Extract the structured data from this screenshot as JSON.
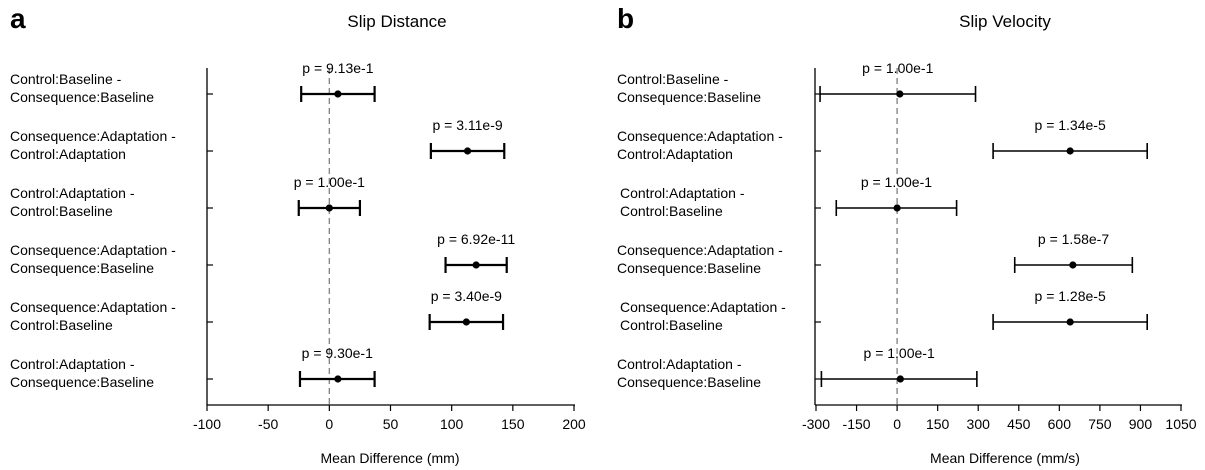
{
  "chart_data": [
    {
      "type": "errorbar",
      "panel": "a",
      "title": "Slip Distance",
      "xlabel": "Mean Difference (mm)",
      "xlim": [
        -100,
        200
      ],
      "xticks": [
        -100,
        -50,
        0,
        50,
        100,
        150,
        200
      ],
      "tick_labels": [
        "-100",
        "-50",
        "0",
        "50",
        "100",
        "150",
        "200"
      ],
      "reference_line": 0,
      "categories": [
        [
          "Control:Baseline -",
          "Consequence:Baseline"
        ],
        [
          "Consequence:Adaptation -",
          "Control:Adaptation"
        ],
        [
          "Control:Adaptation -",
          "Control:Baseline"
        ],
        [
          "Consequence:Adaptation -",
          "Consequence:Baseline"
        ],
        [
          "Consequence:Adaptation -",
          "Control:Baseline"
        ],
        [
          "Control:Adaptation -",
          "Consequence:Baseline"
        ]
      ],
      "mean": [
        7,
        113,
        0,
        120,
        112,
        7
      ],
      "lower": [
        -23,
        83,
        -25,
        95,
        82,
        -24
      ],
      "upper": [
        37,
        143,
        25,
        145,
        142,
        37
      ],
      "p_labels": [
        "p = 9.13e-1",
        "p = 3.11e-9",
        "p = 1.00e-1",
        "p = 6.92e-11",
        "p = 3.40e-9",
        "p = 9.30e-1"
      ]
    },
    {
      "type": "errorbar",
      "panel": "b",
      "title": "Slip Velocity",
      "xlabel": "Mean Difference (mm/s)",
      "xlim": [
        -300,
        1050
      ],
      "xticks": [
        -300,
        -150,
        0,
        150,
        300,
        450,
        600,
        750,
        900,
        1050
      ],
      "tick_labels": [
        "-300",
        "-150",
        "0",
        "150",
        "300",
        "450",
        "600",
        "750",
        "900",
        "1050"
      ],
      "reference_line": 0,
      "categories": [
        [
          "Control:Baseline -",
          "Consequence:Baseline"
        ],
        [
          "Consequence:Adaptation -",
          "Control:Adaptation"
        ],
        [
          "Control:Adaptation -",
          "Control:Baseline"
        ],
        [
          "Consequence:Adaptation -",
          "Consequence:Baseline"
        ],
        [
          "Consequence:Adaptation -",
          "Control:Baseline"
        ],
        [
          "Control:Adaptation -",
          "Consequence:Baseline"
        ]
      ],
      "mean": [
        10,
        640,
        0,
        650,
        640,
        12
      ],
      "lower": [
        -285,
        355,
        -225,
        435,
        355,
        -280
      ],
      "upper": [
        290,
        925,
        220,
        870,
        925,
        295
      ],
      "p_labels": [
        "p = 1.00e-1",
        "p = 1.34e-5",
        "p = 1.00e-1",
        "p = 1.58e-7",
        "p = 1.28e-5",
        "p = 1.00e-1"
      ]
    }
  ]
}
